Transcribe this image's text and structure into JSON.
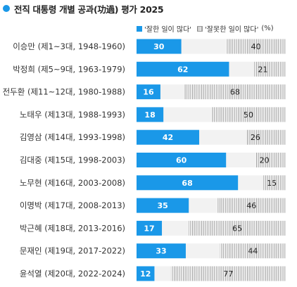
{
  "title": "전직 대통령 개별 공과(功過) 평가 2025",
  "legend": {
    "good": "'잘한 일이 많다'",
    "bad": "'잘못한 일이 많다'",
    "unit": "(%)"
  },
  "colors": {
    "good": "#1a98e8",
    "bad_hatch": "#9a9a9a",
    "bad_bg": "#f2f2f2"
  },
  "chart_data": {
    "type": "bar",
    "orientation": "horizontal",
    "stacked": true,
    "categories": [
      "이승만 (제1~3대, 1948-1960)",
      "박정희 (제5~9대, 1963-1979)",
      "전두환 (제11~12대, 1980-1988)",
      "노태우 (제13대, 1988-1993)",
      "김영삼 (제14대, 1993-1998)",
      "김대중 (제15대, 1998-2003)",
      "노무현 (제16대, 2003-2008)",
      "이명박 (제17대, 2008-2013)",
      "박근혜 (제18대, 2013-2016)",
      "문재인 (제19대, 2017-2022)",
      "윤석열 (제20대, 2022-2024)"
    ],
    "series": [
      {
        "name": "'잘한 일이 많다'",
        "values": [
          30,
          62,
          16,
          18,
          42,
          60,
          68,
          35,
          17,
          33,
          12
        ]
      },
      {
        "name": "'잘못한 일이 많다'",
        "values": [
          40,
          21,
          68,
          50,
          26,
          20,
          15,
          46,
          65,
          44,
          77
        ]
      }
    ],
    "xlim": [
      0,
      100
    ],
    "title": "전직 대통령 개별 공과(功過) 평가 2025",
    "legend_position": "top-right"
  }
}
